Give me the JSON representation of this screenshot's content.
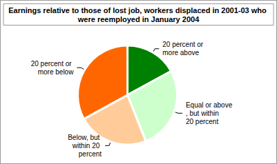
{
  "chart_data": {
    "type": "pie",
    "title": "Earnings relative to those of lost job, workers displaced in 2001-03 who were reemployed in January 2004",
    "categories": [
      "20 percent or more above",
      "Equal or above, but within 20 percent",
      "Below, but within 20 percent",
      "20 percent or more below"
    ],
    "values": [
      17,
      27,
      23,
      33
    ],
    "colors": [
      "#008000",
      "#ccffcc",
      "#ffcc99",
      "#ff6600"
    ]
  }
}
